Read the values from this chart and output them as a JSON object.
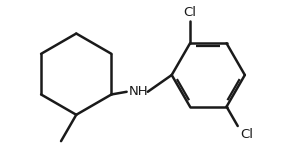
{
  "background_color": "#ffffff",
  "line_color": "#1a1a1a",
  "line_width": 1.8,
  "label_fontsize": 9.5,
  "nh_label": "NH",
  "cl_label": "Cl",
  "fig_width": 2.91,
  "fig_height": 1.52,
  "dpi": 100
}
